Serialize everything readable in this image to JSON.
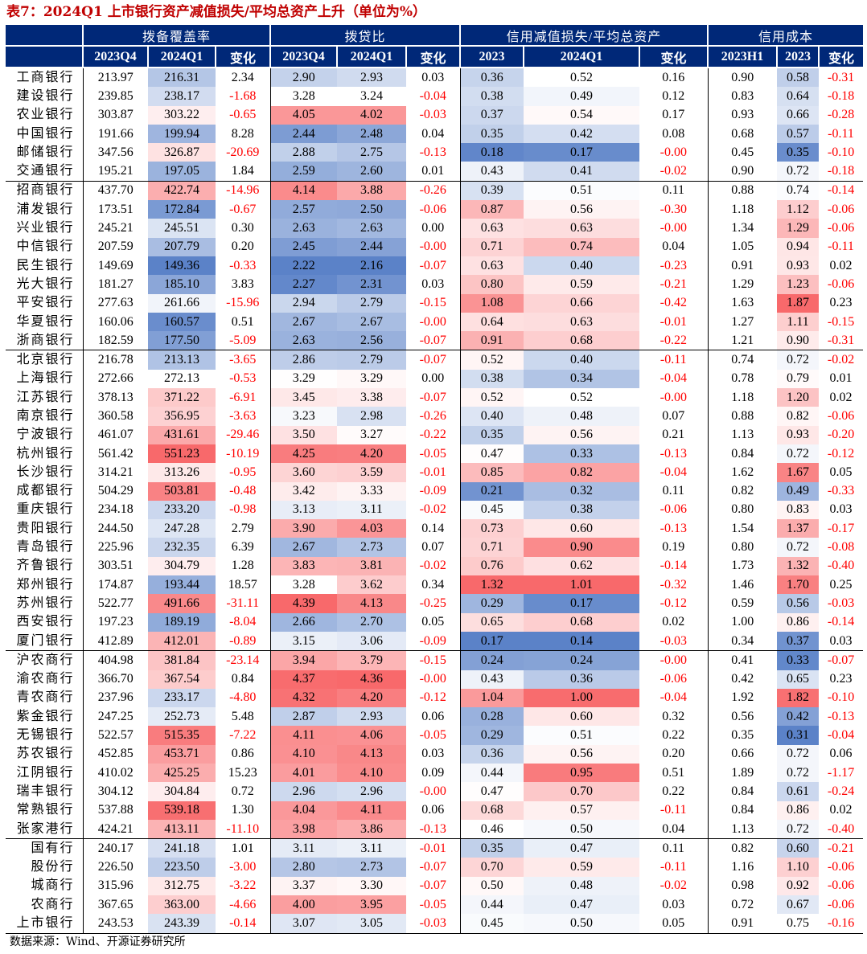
{
  "title": "表7：2024Q1 上市银行资产减值损失/平均总资产上升（单位为%）",
  "source": "数据来源：Wind、开源证券研究所",
  "groups": [
    "拨备覆盖率",
    "拨贷比",
    "信用减值损失/平均总资产",
    "信用成本"
  ],
  "subheaders": [
    "2023Q4",
    "2024Q1",
    "变化",
    "2023Q4",
    "2024Q1",
    "变化",
    "2023",
    "2024Q1",
    "变化",
    "2023H1",
    "2023",
    "变化"
  ],
  "group_breaks": [
    5,
    14,
    30,
    40
  ],
  "rows": [
    [
      "工商银行",
      "213.97",
      "216.31",
      "2.34",
      "2.90",
      "2.93",
      "0.03",
      "0.36",
      "0.52",
      "0.16",
      "0.90",
      "0.58",
      "-0.31"
    ],
    [
      "建设银行",
      "239.85",
      "238.17",
      "-1.68",
      "3.28",
      "3.24",
      "-0.04",
      "0.38",
      "0.49",
      "0.12",
      "0.83",
      "0.64",
      "-0.18"
    ],
    [
      "农业银行",
      "303.87",
      "303.22",
      "-0.65",
      "4.05",
      "4.02",
      "-0.03",
      "0.37",
      "0.54",
      "0.17",
      "0.93",
      "0.66",
      "-0.28"
    ],
    [
      "中国银行",
      "191.66",
      "199.94",
      "8.28",
      "2.44",
      "2.48",
      "0.04",
      "0.35",
      "0.42",
      "0.08",
      "0.68",
      "0.57",
      "-0.11"
    ],
    [
      "邮储银行",
      "347.56",
      "326.87",
      "-20.69",
      "2.88",
      "2.75",
      "-0.13",
      "0.18",
      "0.17",
      "-0.00",
      "0.45",
      "0.35",
      "-0.10"
    ],
    [
      "交通银行",
      "195.21",
      "197.05",
      "1.84",
      "2.59",
      "2.60",
      "0.01",
      "0.43",
      "0.41",
      "-0.02",
      "0.90",
      "0.72",
      "-0.18"
    ],
    [
      "招商银行",
      "437.70",
      "422.74",
      "-14.96",
      "4.14",
      "3.88",
      "-0.26",
      "0.39",
      "0.51",
      "0.11",
      "0.88",
      "0.74",
      "-0.14"
    ],
    [
      "浦发银行",
      "173.51",
      "172.84",
      "-0.67",
      "2.57",
      "2.50",
      "-0.06",
      "0.87",
      "0.56",
      "-0.30",
      "1.18",
      "1.12",
      "-0.06"
    ],
    [
      "兴业银行",
      "245.21",
      "245.51",
      "0.30",
      "2.63",
      "2.63",
      "0.00",
      "0.63",
      "0.63",
      "-0.00",
      "1.34",
      "1.29",
      "-0.06"
    ],
    [
      "中信银行",
      "207.59",
      "207.79",
      "0.20",
      "2.45",
      "2.44",
      "-0.00",
      "0.71",
      "0.74",
      "0.04",
      "1.05",
      "0.94",
      "-0.11"
    ],
    [
      "民生银行",
      "149.69",
      "149.36",
      "-0.33",
      "2.22",
      "2.16",
      "-0.07",
      "0.63",
      "0.40",
      "-0.23",
      "0.91",
      "0.93",
      "0.02"
    ],
    [
      "光大银行",
      "181.27",
      "185.10",
      "3.83",
      "2.27",
      "2.31",
      "0.03",
      "0.80",
      "0.59",
      "-0.21",
      "1.29",
      "1.23",
      "-0.06"
    ],
    [
      "平安银行",
      "277.63",
      "261.66",
      "-15.96",
      "2.94",
      "2.79",
      "-0.15",
      "1.08",
      "0.66",
      "-0.42",
      "1.63",
      "1.87",
      "0.23"
    ],
    [
      "华夏银行",
      "160.06",
      "160.57",
      "0.51",
      "2.67",
      "2.67",
      "-0.00",
      "0.64",
      "0.63",
      "-0.01",
      "1.27",
      "1.11",
      "-0.15"
    ],
    [
      "浙商银行",
      "182.59",
      "177.50",
      "-5.09",
      "2.63",
      "2.56",
      "-0.07",
      "0.91",
      "0.68",
      "-0.22",
      "1.21",
      "0.90",
      "-0.31"
    ],
    [
      "北京银行",
      "216.78",
      "213.13",
      "-3.65",
      "2.86",
      "2.79",
      "-0.07",
      "0.52",
      "0.40",
      "-0.11",
      "0.74",
      "0.72",
      "-0.02"
    ],
    [
      "上海银行",
      "272.66",
      "272.13",
      "-0.53",
      "3.29",
      "3.29",
      "0.00",
      "0.38",
      "0.34",
      "-0.04",
      "0.78",
      "0.79",
      "0.01"
    ],
    [
      "江苏银行",
      "378.13",
      "371.22",
      "-6.91",
      "3.45",
      "3.38",
      "-0.07",
      "0.52",
      "0.52",
      "-0.00",
      "1.18",
      "1.20",
      "0.02"
    ],
    [
      "南京银行",
      "360.58",
      "356.95",
      "-3.63",
      "3.23",
      "2.98",
      "-0.26",
      "0.40",
      "0.48",
      "0.07",
      "0.88",
      "0.82",
      "-0.06"
    ],
    [
      "宁波银行",
      "461.07",
      "431.61",
      "-29.46",
      "3.50",
      "3.27",
      "-0.22",
      "0.35",
      "0.56",
      "0.21",
      "1.13",
      "0.93",
      "-0.20"
    ],
    [
      "杭州银行",
      "561.42",
      "551.23",
      "-10.19",
      "4.25",
      "4.20",
      "-0.05",
      "0.47",
      "0.33",
      "-0.13",
      "0.84",
      "0.72",
      "-0.12"
    ],
    [
      "长沙银行",
      "314.21",
      "313.26",
      "-0.95",
      "3.60",
      "3.59",
      "-0.01",
      "0.85",
      "0.82",
      "-0.04",
      "1.62",
      "1.67",
      "0.05"
    ],
    [
      "成都银行",
      "504.29",
      "503.81",
      "-0.48",
      "3.42",
      "3.33",
      "-0.09",
      "0.21",
      "0.32",
      "0.11",
      "0.82",
      "0.49",
      "-0.33"
    ],
    [
      "重庆银行",
      "234.18",
      "233.20",
      "-0.98",
      "3.13",
      "3.11",
      "-0.02",
      "0.45",
      "0.38",
      "-0.06",
      "0.80",
      "0.83",
      "0.03"
    ],
    [
      "贵阳银行",
      "244.50",
      "247.28",
      "2.79",
      "3.90",
      "4.03",
      "0.14",
      "0.73",
      "0.60",
      "-0.13",
      "1.54",
      "1.37",
      "-0.17"
    ],
    [
      "青岛银行",
      "225.96",
      "232.35",
      "6.39",
      "2.67",
      "2.73",
      "0.07",
      "0.71",
      "0.90",
      "0.19",
      "0.80",
      "0.72",
      "-0.08"
    ],
    [
      "齐鲁银行",
      "303.51",
      "304.79",
      "1.28",
      "3.83",
      "3.81",
      "-0.02",
      "0.76",
      "0.62",
      "-0.14",
      "1.73",
      "1.32",
      "-0.40"
    ],
    [
      "郑州银行",
      "174.87",
      "193.44",
      "18.57",
      "3.28",
      "3.62",
      "0.34",
      "1.32",
      "1.01",
      "-0.32",
      "1.46",
      "1.70",
      "0.25"
    ],
    [
      "苏州银行",
      "522.77",
      "491.66",
      "-31.11",
      "4.39",
      "4.13",
      "-0.25",
      "0.29",
      "0.17",
      "-0.12",
      "0.59",
      "0.56",
      "-0.03"
    ],
    [
      "西安银行",
      "197.23",
      "189.19",
      "-8.04",
      "2.66",
      "2.70",
      "0.05",
      "0.65",
      "0.68",
      "0.02",
      "1.00",
      "0.86",
      "-0.14"
    ],
    [
      "厦门银行",
      "412.89",
      "412.01",
      "-0.89",
      "3.15",
      "3.06",
      "-0.09",
      "0.17",
      "0.14",
      "-0.03",
      "0.34",
      "0.37",
      "0.03"
    ],
    [
      "沪农商行",
      "404.98",
      "381.84",
      "-23.14",
      "3.94",
      "3.79",
      "-0.15",
      "0.24",
      "0.24",
      "-0.00",
      "0.41",
      "0.33",
      "-0.07"
    ],
    [
      "渝农商行",
      "366.70",
      "367.54",
      "0.84",
      "4.37",
      "4.36",
      "-0.00",
      "0.43",
      "0.36",
      "-0.06",
      "0.42",
      "0.65",
      "0.23"
    ],
    [
      "青农商行",
      "237.96",
      "233.17",
      "-4.80",
      "4.32",
      "4.20",
      "-0.12",
      "1.04",
      "1.00",
      "-0.04",
      "1.92",
      "1.82",
      "-0.10"
    ],
    [
      "紫金银行",
      "247.25",
      "252.73",
      "5.48",
      "2.87",
      "2.93",
      "0.06",
      "0.28",
      "0.60",
      "0.32",
      "0.56",
      "0.42",
      "-0.13"
    ],
    [
      "无锡银行",
      "522.57",
      "515.35",
      "-7.22",
      "4.11",
      "4.06",
      "-0.05",
      "0.29",
      "0.51",
      "0.22",
      "0.35",
      "0.31",
      "-0.04"
    ],
    [
      "苏农银行",
      "452.85",
      "453.71",
      "0.86",
      "4.10",
      "4.13",
      "0.03",
      "0.36",
      "0.56",
      "0.20",
      "0.66",
      "0.72",
      "0.06"
    ],
    [
      "江阴银行",
      "410.02",
      "425.25",
      "15.23",
      "4.01",
      "4.10",
      "0.09",
      "0.44",
      "0.95",
      "0.51",
      "1.89",
      "0.72",
      "-1.17"
    ],
    [
      "瑞丰银行",
      "304.12",
      "304.84",
      "0.72",
      "2.96",
      "2.96",
      "-0.00",
      "0.47",
      "0.70",
      "0.22",
      "0.84",
      "0.61",
      "-0.24"
    ],
    [
      "常熟银行",
      "537.88",
      "539.18",
      "1.30",
      "4.04",
      "4.11",
      "0.06",
      "0.68",
      "0.57",
      "-0.11",
      "0.84",
      "0.86",
      "0.02"
    ],
    [
      "张家港行",
      "424.21",
      "413.11",
      "-11.10",
      "3.98",
      "3.86",
      "-0.13",
      "0.46",
      "0.50",
      "0.04",
      "1.13",
      "0.72",
      "-0.40"
    ],
    [
      "国有行",
      "240.17",
      "241.18",
      "1.01",
      "3.11",
      "3.11",
      "-0.01",
      "0.35",
      "0.47",
      "0.11",
      "0.82",
      "0.60",
      "-0.21"
    ],
    [
      "股份行",
      "226.50",
      "223.50",
      "-3.00",
      "2.80",
      "2.73",
      "-0.07",
      "0.70",
      "0.59",
      "-0.11",
      "1.16",
      "1.10",
      "-0.06"
    ],
    [
      "城商行",
      "315.96",
      "312.75",
      "-3.22",
      "3.37",
      "3.30",
      "-0.07",
      "0.50",
      "0.48",
      "-0.02",
      "0.98",
      "0.92",
      "-0.06"
    ],
    [
      "农商行",
      "367.65",
      "363.00",
      "-4.66",
      "4.00",
      "3.95",
      "-0.05",
      "0.44",
      "0.47",
      "0.03",
      "0.72",
      "0.67",
      "-0.06"
    ],
    [
      "上市银行",
      "243.53",
      "243.39",
      "-0.14",
      "3.07",
      "3.05",
      "-0.03",
      "0.45",
      "0.50",
      "0.05",
      "0.91",
      "0.75",
      "-0.16"
    ]
  ],
  "heatmap_columns": [
    2,
    4,
    5,
    7,
    8,
    11
  ],
  "heatmap_colors": {
    "low": "#5b82c8",
    "mid": "#ffffff",
    "high": "#f8696b"
  }
}
